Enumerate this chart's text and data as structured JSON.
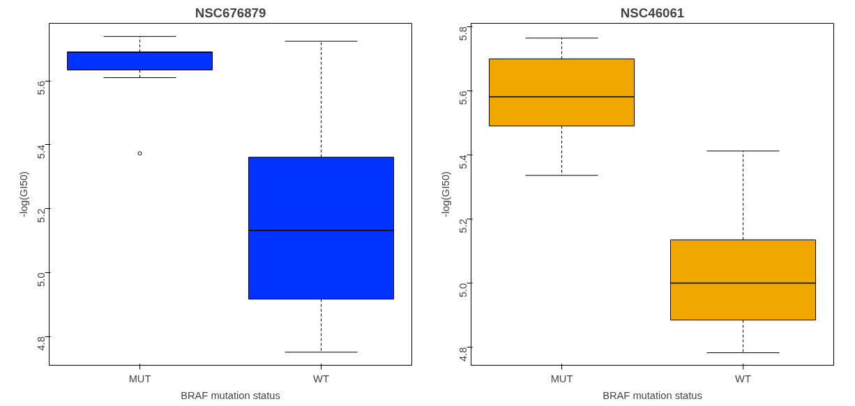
{
  "chart_data": [
    {
      "type": "box",
      "title": "NSC676879",
      "xlabel": "BRAF mutation status",
      "ylabel": "-log(GI50)",
      "categories": [
        "MUT",
        "WT"
      ],
      "color": "#0033ff",
      "grid": false,
      "ylim": [
        4.71,
        5.78
      ],
      "yticks": [
        4.8,
        {
          "value": 5,
          "label": "5.0"
        },
        5.2,
        5.4,
        5.6
      ],
      "boxes": [
        {
          "low": 5.61,
          "q1": 5.634,
          "median": 5.69,
          "q3": 5.69,
          "high": 5.739,
          "outliers": [
            5.373
          ]
        },
        {
          "low": 4.751,
          "q1": 4.917,
          "median": 5.132,
          "q3": 5.361,
          "high": 5.724
        }
      ]
    },
    {
      "type": "box",
      "title": "NSC46061",
      "xlabel": "BRAF mutation status",
      "ylabel": "-log(GI50)",
      "categories": [
        "MUT",
        "WT"
      ],
      "color": "#f0a800",
      "grid": false,
      "ylim": [
        4.744,
        5.81
      ],
      "yticks": [
        4.8,
        {
          "value": 5,
          "label": "5.0"
        },
        5.2,
        5.4,
        5.6,
        5.8
      ],
      "boxes": [
        {
          "low": 5.336,
          "q1": 5.49,
          "median": 5.581,
          "q3": 5.699,
          "high": 5.764
        },
        {
          "low": 4.783,
          "q1": 4.885,
          "median": 5.0,
          "q3": 5.135,
          "high": 5.412
        }
      ]
    }
  ]
}
